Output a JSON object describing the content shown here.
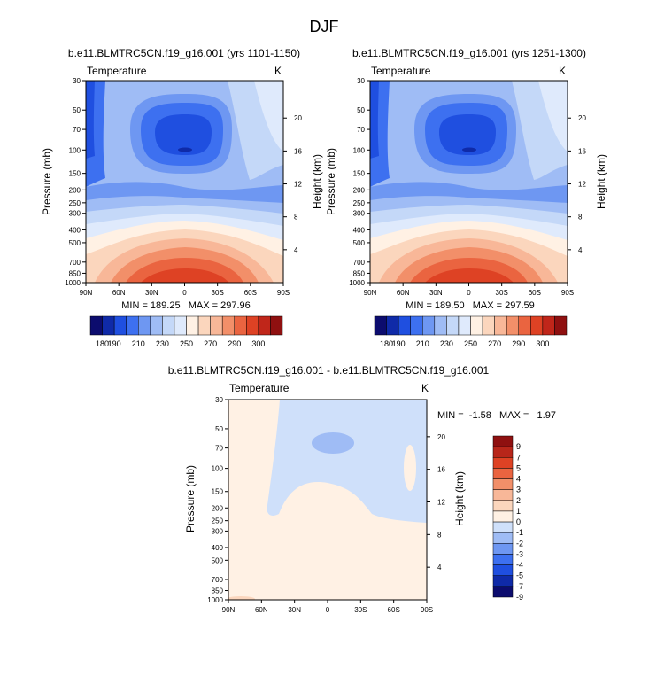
{
  "figure": {
    "title": "DJF"
  },
  "palettes": {
    "temperature": [
      "#0c0c6e",
      "#0f2aa8",
      "#1f4fe0",
      "#3d70f0",
      "#6e97f2",
      "#9fbcf5",
      "#c4d8f8",
      "#dfeafc",
      "#fff1e4",
      "#fbd6bd",
      "#f8b798",
      "#f28f69",
      "#ea6440",
      "#de4224",
      "#c0261a",
      "#8f1010"
    ],
    "difference": [
      "#0c0c6e",
      "#0f2aa8",
      "#1f4fe0",
      "#3d70f0",
      "#6e97f2",
      "#9fbcf5",
      "#cfe0fa",
      "#fff1e4",
      "#fbd6bd",
      "#f8b798",
      "#f28f69",
      "#ea6440",
      "#de4224",
      "#b8261a",
      "#8f1010"
    ]
  },
  "chart_data": [
    {
      "type": "heatmap",
      "id": "left",
      "title": "b.e11.BLMTRC5CN.f19_g16.001 (yrs 1101-1150)",
      "left_label": "Temperature",
      "right_label": "K",
      "ylabel": "Pressure (mb)",
      "ylabel_right": "Height (km)",
      "x_ticks": [
        "90N",
        "60N",
        "30N",
        "0",
        "30S",
        "60S",
        "90S"
      ],
      "x_values": [
        90,
        60,
        30,
        0,
        -30,
        -60,
        -90
      ],
      "y_ticks": [
        "30",
        "50",
        "70",
        "100",
        "150",
        "200",
        "250",
        "300",
        "400",
        "500",
        "700",
        "850",
        "1000"
      ],
      "y_values": [
        30,
        50,
        70,
        100,
        150,
        200,
        250,
        300,
        400,
        500,
        700,
        850,
        1000
      ],
      "ylim": [
        30,
        1000
      ],
      "y_scale": "log",
      "height_ticks": [
        "4",
        "8",
        "12",
        "16",
        "20"
      ],
      "height_values": [
        4,
        8,
        12,
        16,
        20
      ],
      "stats": "MIN = 189.25   MAX = 297.96",
      "min": 189.25,
      "max": 297.96,
      "colorbar_labels": [
        "180",
        "190",
        "210",
        "230",
        "250",
        "270",
        "290",
        "300"
      ],
      "colorbar_position": "bottom"
    },
    {
      "type": "heatmap",
      "id": "right",
      "title": "b.e11.BLMTRC5CN.f19_g16.001 (yrs 1251-1300)",
      "left_label": "Temperature",
      "right_label": "K",
      "ylabel": "Pressure (mb)",
      "ylabel_right": "Height (km)",
      "x_ticks": [
        "90N",
        "60N",
        "30N",
        "0",
        "30S",
        "60S",
        "90S"
      ],
      "x_values": [
        90,
        60,
        30,
        0,
        -30,
        -60,
        -90
      ],
      "y_ticks": [
        "30",
        "50",
        "70",
        "100",
        "150",
        "200",
        "250",
        "300",
        "400",
        "500",
        "700",
        "850",
        "1000"
      ],
      "y_values": [
        30,
        50,
        70,
        100,
        150,
        200,
        250,
        300,
        400,
        500,
        700,
        850,
        1000
      ],
      "ylim": [
        30,
        1000
      ],
      "y_scale": "log",
      "height_ticks": [
        "4",
        "8",
        "12",
        "16",
        "20"
      ],
      "height_values": [
        4,
        8,
        12,
        16,
        20
      ],
      "stats": "MIN = 189.50   MAX = 297.59",
      "min": 189.5,
      "max": 297.59,
      "colorbar_labels": [
        "180",
        "190",
        "210",
        "230",
        "250",
        "270",
        "290",
        "300"
      ],
      "colorbar_position": "bottom"
    },
    {
      "type": "heatmap",
      "id": "diff",
      "title": "b.e11.BLMTRC5CN.f19_g16.001 - b.e11.BLMTRC5CN.f19_g16.001",
      "left_label": "Temperature",
      "right_label": "K",
      "ylabel": "Pressure (mb)",
      "ylabel_right": "Height (km)",
      "x_ticks": [
        "90N",
        "60N",
        "30N",
        "0",
        "30S",
        "60S",
        "90S"
      ],
      "x_values": [
        90,
        60,
        30,
        0,
        -30,
        -60,
        -90
      ],
      "y_ticks": [
        "30",
        "50",
        "70",
        "100",
        "150",
        "200",
        "250",
        "300",
        "400",
        "500",
        "700",
        "850",
        "1000"
      ],
      "y_values": [
        30,
        50,
        70,
        100,
        150,
        200,
        250,
        300,
        400,
        500,
        700,
        850,
        1000
      ],
      "ylim": [
        30,
        1000
      ],
      "y_scale": "log",
      "height_ticks": [
        "4",
        "8",
        "12",
        "16",
        "20"
      ],
      "height_values": [
        4,
        8,
        12,
        16,
        20
      ],
      "stats": "MIN =  -1.58   MAX =   1.97",
      "min": -1.58,
      "max": 1.97,
      "colorbar_labels": [
        "9",
        "7",
        "5",
        "4",
        "3",
        "2",
        "1",
        "0",
        "-1",
        "-2",
        "-3",
        "-4",
        "-5",
        "-7",
        "-9"
      ],
      "colorbar_position": "right"
    }
  ]
}
